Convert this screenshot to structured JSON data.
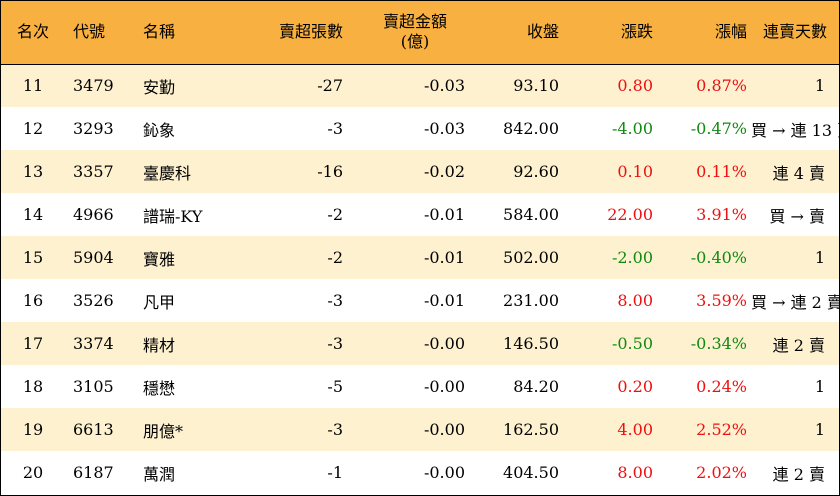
{
  "colors": {
    "header_bg": "#f8b040",
    "alt_row_bg": "#fef1d0",
    "up": "#ee1010",
    "down": "#108a10"
  },
  "headers": {
    "rank": "名次",
    "code": "代號",
    "name": "名稱",
    "net_sell_lots": "賣超張數",
    "net_sell_amount_line1": "賣超金額",
    "net_sell_amount_line2": "(億)",
    "close": "收盤",
    "change": "漲跌",
    "change_pct": "漲幅",
    "consecutive_days": "連賣天數"
  },
  "rows": [
    {
      "rank": "11",
      "code": "3479",
      "name": "安勤",
      "net_sell_lots": "-27",
      "net_sell_amount": "-0.03",
      "close": "93.10",
      "change": "0.80",
      "change_pct": "0.87%",
      "trend": "up",
      "consecutive_days": "1"
    },
    {
      "rank": "12",
      "code": "3293",
      "name": "鈊象",
      "net_sell_lots": "-3",
      "net_sell_amount": "-0.03",
      "close": "842.00",
      "change": "-4.00",
      "change_pct": "-0.47%",
      "trend": "down",
      "consecutive_days": "買 → 連 13 賣"
    },
    {
      "rank": "13",
      "code": "3357",
      "name": "臺慶科",
      "net_sell_lots": "-16",
      "net_sell_amount": "-0.02",
      "close": "92.60",
      "change": "0.10",
      "change_pct": "0.11%",
      "trend": "up",
      "consecutive_days": "連 4 賣"
    },
    {
      "rank": "14",
      "code": "4966",
      "name": "譜瑞-KY",
      "net_sell_lots": "-2",
      "net_sell_amount": "-0.01",
      "close": "584.00",
      "change": "22.00",
      "change_pct": "3.91%",
      "trend": "up",
      "consecutive_days": "買 → 賣"
    },
    {
      "rank": "15",
      "code": "5904",
      "name": "寶雅",
      "net_sell_lots": "-2",
      "net_sell_amount": "-0.01",
      "close": "502.00",
      "change": "-2.00",
      "change_pct": "-0.40%",
      "trend": "down",
      "consecutive_days": "1"
    },
    {
      "rank": "16",
      "code": "3526",
      "name": "凡甲",
      "net_sell_lots": "-3",
      "net_sell_amount": "-0.01",
      "close": "231.00",
      "change": "8.00",
      "change_pct": "3.59%",
      "trend": "up",
      "consecutive_days": "買 → 連 2 賣"
    },
    {
      "rank": "17",
      "code": "3374",
      "name": "精材",
      "net_sell_lots": "-3",
      "net_sell_amount": "-0.00",
      "close": "146.50",
      "change": "-0.50",
      "change_pct": "-0.34%",
      "trend": "down",
      "consecutive_days": "連 2 賣"
    },
    {
      "rank": "18",
      "code": "3105",
      "name": "穩懋",
      "net_sell_lots": "-5",
      "net_sell_amount": "-0.00",
      "close": "84.20",
      "change": "0.20",
      "change_pct": "0.24%",
      "trend": "up",
      "consecutive_days": "1"
    },
    {
      "rank": "19",
      "code": "6613",
      "name": "朋億*",
      "net_sell_lots": "-3",
      "net_sell_amount": "-0.00",
      "close": "162.50",
      "change": "4.00",
      "change_pct": "2.52%",
      "trend": "up",
      "consecutive_days": "1"
    },
    {
      "rank": "20",
      "code": "6187",
      "name": "萬潤",
      "net_sell_lots": "-1",
      "net_sell_amount": "-0.00",
      "close": "404.50",
      "change": "8.00",
      "change_pct": "2.02%",
      "trend": "up",
      "consecutive_days": "連 2 賣"
    }
  ]
}
